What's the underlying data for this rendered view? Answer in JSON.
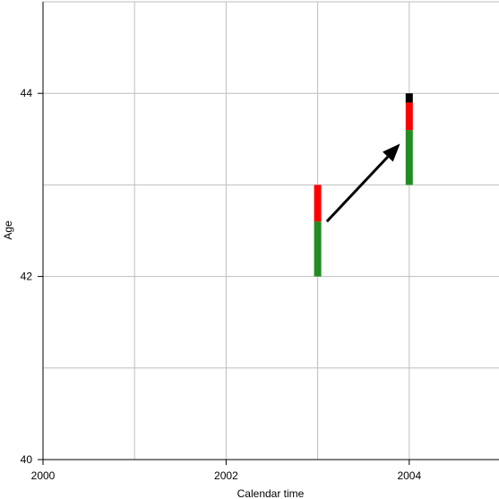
{
  "chart_data": {
    "type": "bar",
    "description_kind": "lexis-segments",
    "xlabel": "Calendar time",
    "ylabel": "Age",
    "xlim": [
      2000,
      2005
    ],
    "ylim": [
      40,
      45
    ],
    "x_ticks": [
      {
        "value": 2000,
        "label": "2000"
      },
      {
        "value": 2002,
        "label": "2002"
      },
      {
        "value": 2004,
        "label": "2004"
      }
    ],
    "y_ticks": [
      {
        "value": 40,
        "label": "40"
      },
      {
        "value": 42,
        "label": "42"
      },
      {
        "value": 44,
        "label": "44"
      }
    ],
    "x_grid": [
      2000,
      2001,
      2002,
      2003,
      2004,
      2005
    ],
    "y_grid": [
      40,
      41,
      42,
      43,
      44,
      45
    ],
    "grid": true,
    "segments": [
      {
        "x": 2003,
        "y0": 42.0,
        "y1": 42.6,
        "color": "#228b22"
      },
      {
        "x": 2003,
        "y0": 42.6,
        "y1": 43.0,
        "color": "#ff0000"
      },
      {
        "x": 2004,
        "y0": 43.0,
        "y1": 43.6,
        "color": "#228b22"
      },
      {
        "x": 2004,
        "y0": 43.6,
        "y1": 43.9,
        "color": "#ff0000"
      },
      {
        "x": 2004,
        "y0": 43.9,
        "y1": 44.0,
        "color": "#000000"
      }
    ],
    "arrow": {
      "from": {
        "x": 2003.1,
        "y": 42.6
      },
      "to": {
        "x": 2003.9,
        "y": 43.45
      },
      "color": "#000000"
    },
    "grid_color": "#bebebe",
    "axis_color": "#000000"
  }
}
